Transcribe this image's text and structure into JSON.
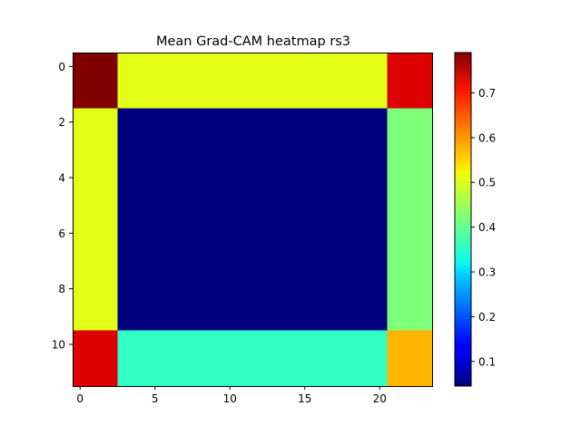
{
  "chart_data": {
    "type": "heatmap",
    "title": "Mean Grad-CAM heatmap rs3",
    "colormap": "jet",
    "vmin": 0.045,
    "vmax": 0.79,
    "xlim": [
      -0.5,
      23.5
    ],
    "ylim": [
      11.5,
      -0.5
    ],
    "xticks": [
      0,
      5,
      10,
      15,
      20
    ],
    "yticks": [
      0,
      2,
      4,
      6,
      8,
      10
    ],
    "colorbar_ticks": [
      0.1,
      0.2,
      0.3,
      0.4,
      0.5,
      0.6,
      0.7
    ],
    "regions": [
      {
        "rows": [
          0,
          1
        ],
        "cols": [
          0,
          2
        ],
        "value": 0.79
      },
      {
        "rows": [
          0,
          1
        ],
        "cols": [
          3,
          20
        ],
        "value": 0.51
      },
      {
        "rows": [
          0,
          1
        ],
        "cols": [
          21,
          23
        ],
        "value": 0.73
      },
      {
        "rows": [
          2,
          9
        ],
        "cols": [
          0,
          2
        ],
        "value": 0.51
      },
      {
        "rows": [
          2,
          9
        ],
        "cols": [
          3,
          20
        ],
        "value": 0.045
      },
      {
        "rows": [
          2,
          9
        ],
        "cols": [
          21,
          23
        ],
        "value": 0.42
      },
      {
        "rows": [
          10,
          11
        ],
        "cols": [
          0,
          2
        ],
        "value": 0.73
      },
      {
        "rows": [
          10,
          11
        ],
        "cols": [
          3,
          20
        ],
        "value": 0.35
      },
      {
        "rows": [
          10,
          11
        ],
        "cols": [
          21,
          23
        ],
        "value": 0.58
      }
    ]
  }
}
